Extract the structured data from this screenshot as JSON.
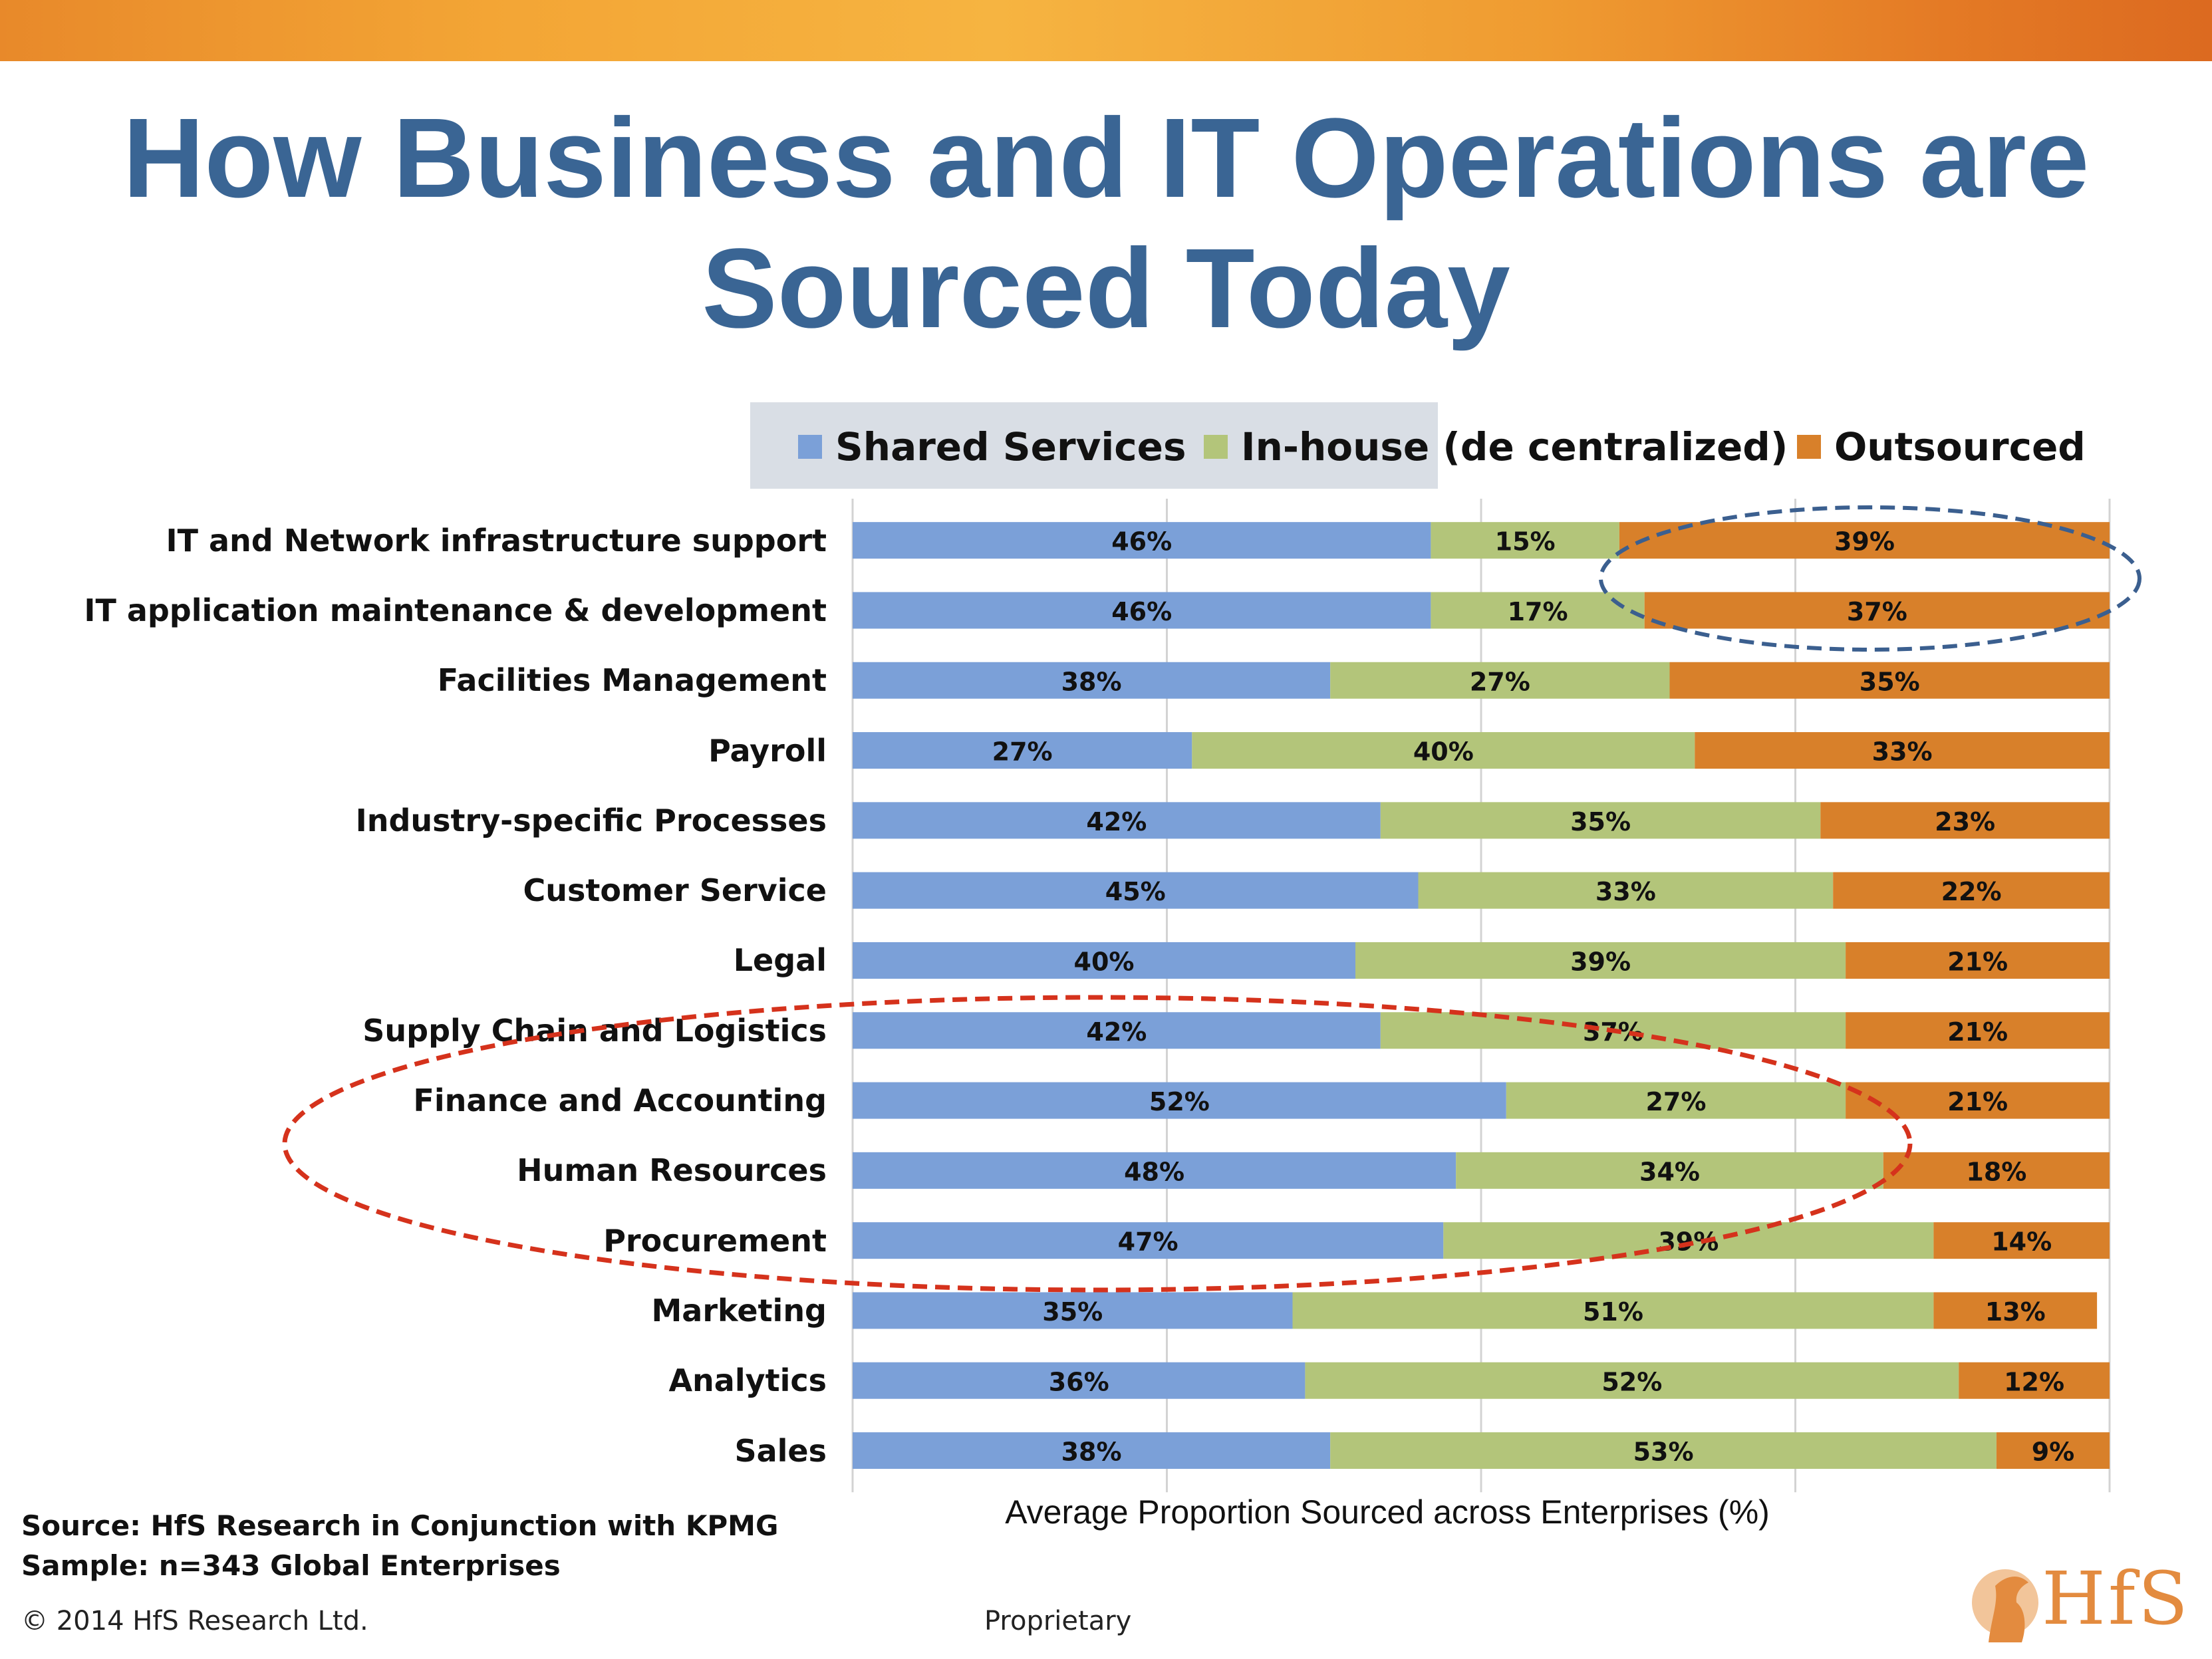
{
  "title": "How Business and IT Operations are Sourced Today",
  "colors": {
    "shared": "#7ba0d8",
    "inhouse": "#b3c57a",
    "outsourced": "#d8802a",
    "title": "#3a6594",
    "blue_ellipse": "#3b5f8f",
    "red_ellipse": "#d5321c"
  },
  "legend": {
    "shared": "Shared Services",
    "inhouse": "In-house (de centralized)",
    "outsourced": "Outsourced"
  },
  "chart_data": {
    "type": "bar",
    "orientation": "horizontal",
    "stacked": true,
    "xlabel": "Average Proportion Sourced across Enterprises (%)",
    "xlim": [
      0,
      100
    ],
    "grid": true,
    "legend_position": "top",
    "categories": [
      "IT and Network infrastructure support",
      "IT application maintenance & development",
      "Facilities Management",
      "Payroll",
      "Industry-specific Processes",
      "Customer Service",
      "Legal",
      "Supply Chain and Logistics",
      "Finance and Accounting",
      "Human Resources",
      "Procurement",
      "Marketing",
      "Analytics",
      "Sales"
    ],
    "series": [
      {
        "name": "Shared Services",
        "values": [
          46,
          46,
          38,
          27,
          42,
          45,
          40,
          42,
          52,
          48,
          47,
          35,
          36,
          38
        ]
      },
      {
        "name": "In-house (de centralized)",
        "values": [
          15,
          17,
          27,
          40,
          35,
          33,
          39,
          37,
          27,
          34,
          39,
          51,
          52,
          53
        ]
      },
      {
        "name": "Outsourced",
        "values": [
          39,
          37,
          35,
          33,
          23,
          22,
          21,
          21,
          21,
          18,
          14,
          13,
          12,
          9
        ]
      }
    ],
    "data_labels": [
      [
        "46%",
        "15%",
        "39%"
      ],
      [
        "46%",
        "17%",
        "37%"
      ],
      [
        "38%",
        "27%",
        "35%"
      ],
      [
        "27%",
        "40%",
        "33%"
      ],
      [
        "42%",
        "35%",
        "23%"
      ],
      [
        "45%",
        "33%",
        "22%"
      ],
      [
        "40%",
        "39%",
        "21%"
      ],
      [
        "42%",
        "37%",
        "21%"
      ],
      [
        "52%",
        "27%",
        "21%"
      ],
      [
        "48%",
        "34%",
        "18%"
      ],
      [
        "47%",
        "39%",
        "14%"
      ],
      [
        "35%",
        "51%",
        "13%"
      ],
      [
        "36%",
        "52%",
        "12%"
      ],
      [
        "38%",
        "53%",
        "9%"
      ]
    ]
  },
  "footer": {
    "source": "Source:  HfS Research in Conjunction with KPMG",
    "sample": "Sample: n=343 Global Enterprises",
    "copyright": "© 2014 HfS Research Ltd.",
    "proprietary": "Proprietary",
    "logo_text": "HfS"
  }
}
